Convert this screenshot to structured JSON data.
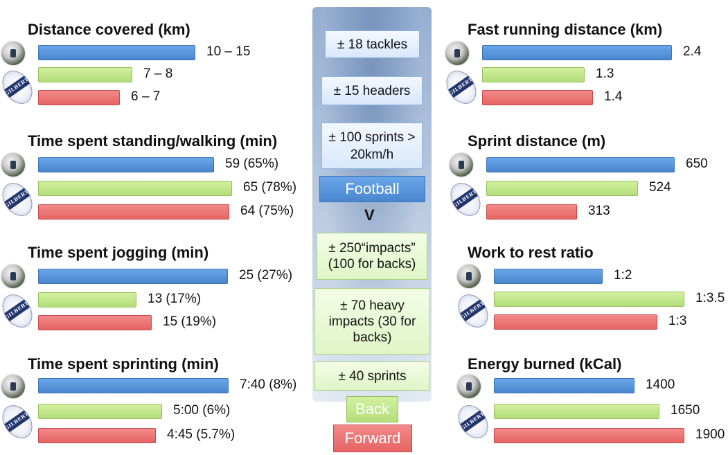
{
  "chart_data": [
    {
      "type": "bar",
      "orientation": "horizontal",
      "title": "Distance covered (km)",
      "categories": [
        "Football",
        "Back",
        "Forward"
      ],
      "values": [
        12.5,
        7.5,
        6.5
      ],
      "labels": [
        "10 – 15",
        "7 – 8",
        "6 – 7"
      ],
      "xlim": [
        0,
        15
      ]
    },
    {
      "type": "bar",
      "orientation": "horizontal",
      "title": "Time spent standing/walking (min)",
      "categories": [
        "Football",
        "Back",
        "Forward"
      ],
      "values": [
        59,
        65,
        64
      ],
      "labels": [
        "59 (65%)",
        "65 (78%)",
        "64 (75%)"
      ],
      "xlim": [
        0,
        65
      ]
    },
    {
      "type": "bar",
      "orientation": "horizontal",
      "title": "Time spent jogging (min)",
      "categories": [
        "Football",
        "Back",
        "Forward"
      ],
      "values": [
        25,
        13,
        15
      ],
      "labels": [
        "25 (27%)",
        "13 (17%)",
        "15 (19%)"
      ],
      "xlim": [
        0,
        25
      ]
    },
    {
      "type": "bar",
      "orientation": "horizontal",
      "title": "Time spent sprinting (min)",
      "categories": [
        "Football",
        "Back",
        "Forward"
      ],
      "values": [
        7.67,
        5.0,
        4.75
      ],
      "labels": [
        "7:40 (8%)",
        "5:00 (6%)",
        "4:45 (5.7%)"
      ],
      "xlim": [
        0,
        7.67
      ]
    },
    {
      "type": "bar",
      "orientation": "horizontal",
      "title": "Fast running distance (km)",
      "categories": [
        "Football",
        "Back",
        "Forward"
      ],
      "values": [
        2.4,
        1.3,
        1.4
      ],
      "labels": [
        "2.4",
        "1.3",
        "1.4"
      ],
      "xlim": [
        0,
        2.4
      ]
    },
    {
      "type": "bar",
      "orientation": "horizontal",
      "title": "Sprint distance (m)",
      "categories": [
        "Football",
        "Back",
        "Forward"
      ],
      "values": [
        650,
        524,
        313
      ],
      "labels": [
        "650",
        "524",
        "313"
      ],
      "xlim": [
        0,
        650
      ]
    },
    {
      "type": "bar",
      "orientation": "horizontal",
      "title": "Work to rest ratio",
      "categories": [
        "Football",
        "Back",
        "Forward"
      ],
      "values": [
        2,
        3.5,
        3
      ],
      "labels": [
        "1:2",
        "1:3.5",
        "1:3"
      ],
      "xlim": [
        0,
        3.5
      ]
    },
    {
      "type": "bar",
      "orientation": "horizontal",
      "title": "Energy burned (kCal)",
      "categories": [
        "Football",
        "Back",
        "Forward"
      ],
      "values": [
        1400,
        1650,
        1900
      ],
      "labels": [
        "1400",
        "1650",
        "1900"
      ],
      "xlim": [
        0,
        1900
      ]
    }
  ],
  "center": {
    "football_facts": [
      "± 18 tackles",
      "± 15 headers",
      "± 100 sprints > 20km/h"
    ],
    "rugby_facts": [
      "± 250“impacts” (100 for backs)",
      "± 70 heavy impacts (30 for backs)",
      "± 40 sprints"
    ],
    "vs_label": "V"
  },
  "legend": {
    "football": "Football",
    "back": "Back",
    "forward": "Forward"
  },
  "rugby_ball_text": "GILBERT",
  "colors": {
    "football": "#4a86cf",
    "back": "#b4dd7a",
    "forward": "#e66464"
  }
}
